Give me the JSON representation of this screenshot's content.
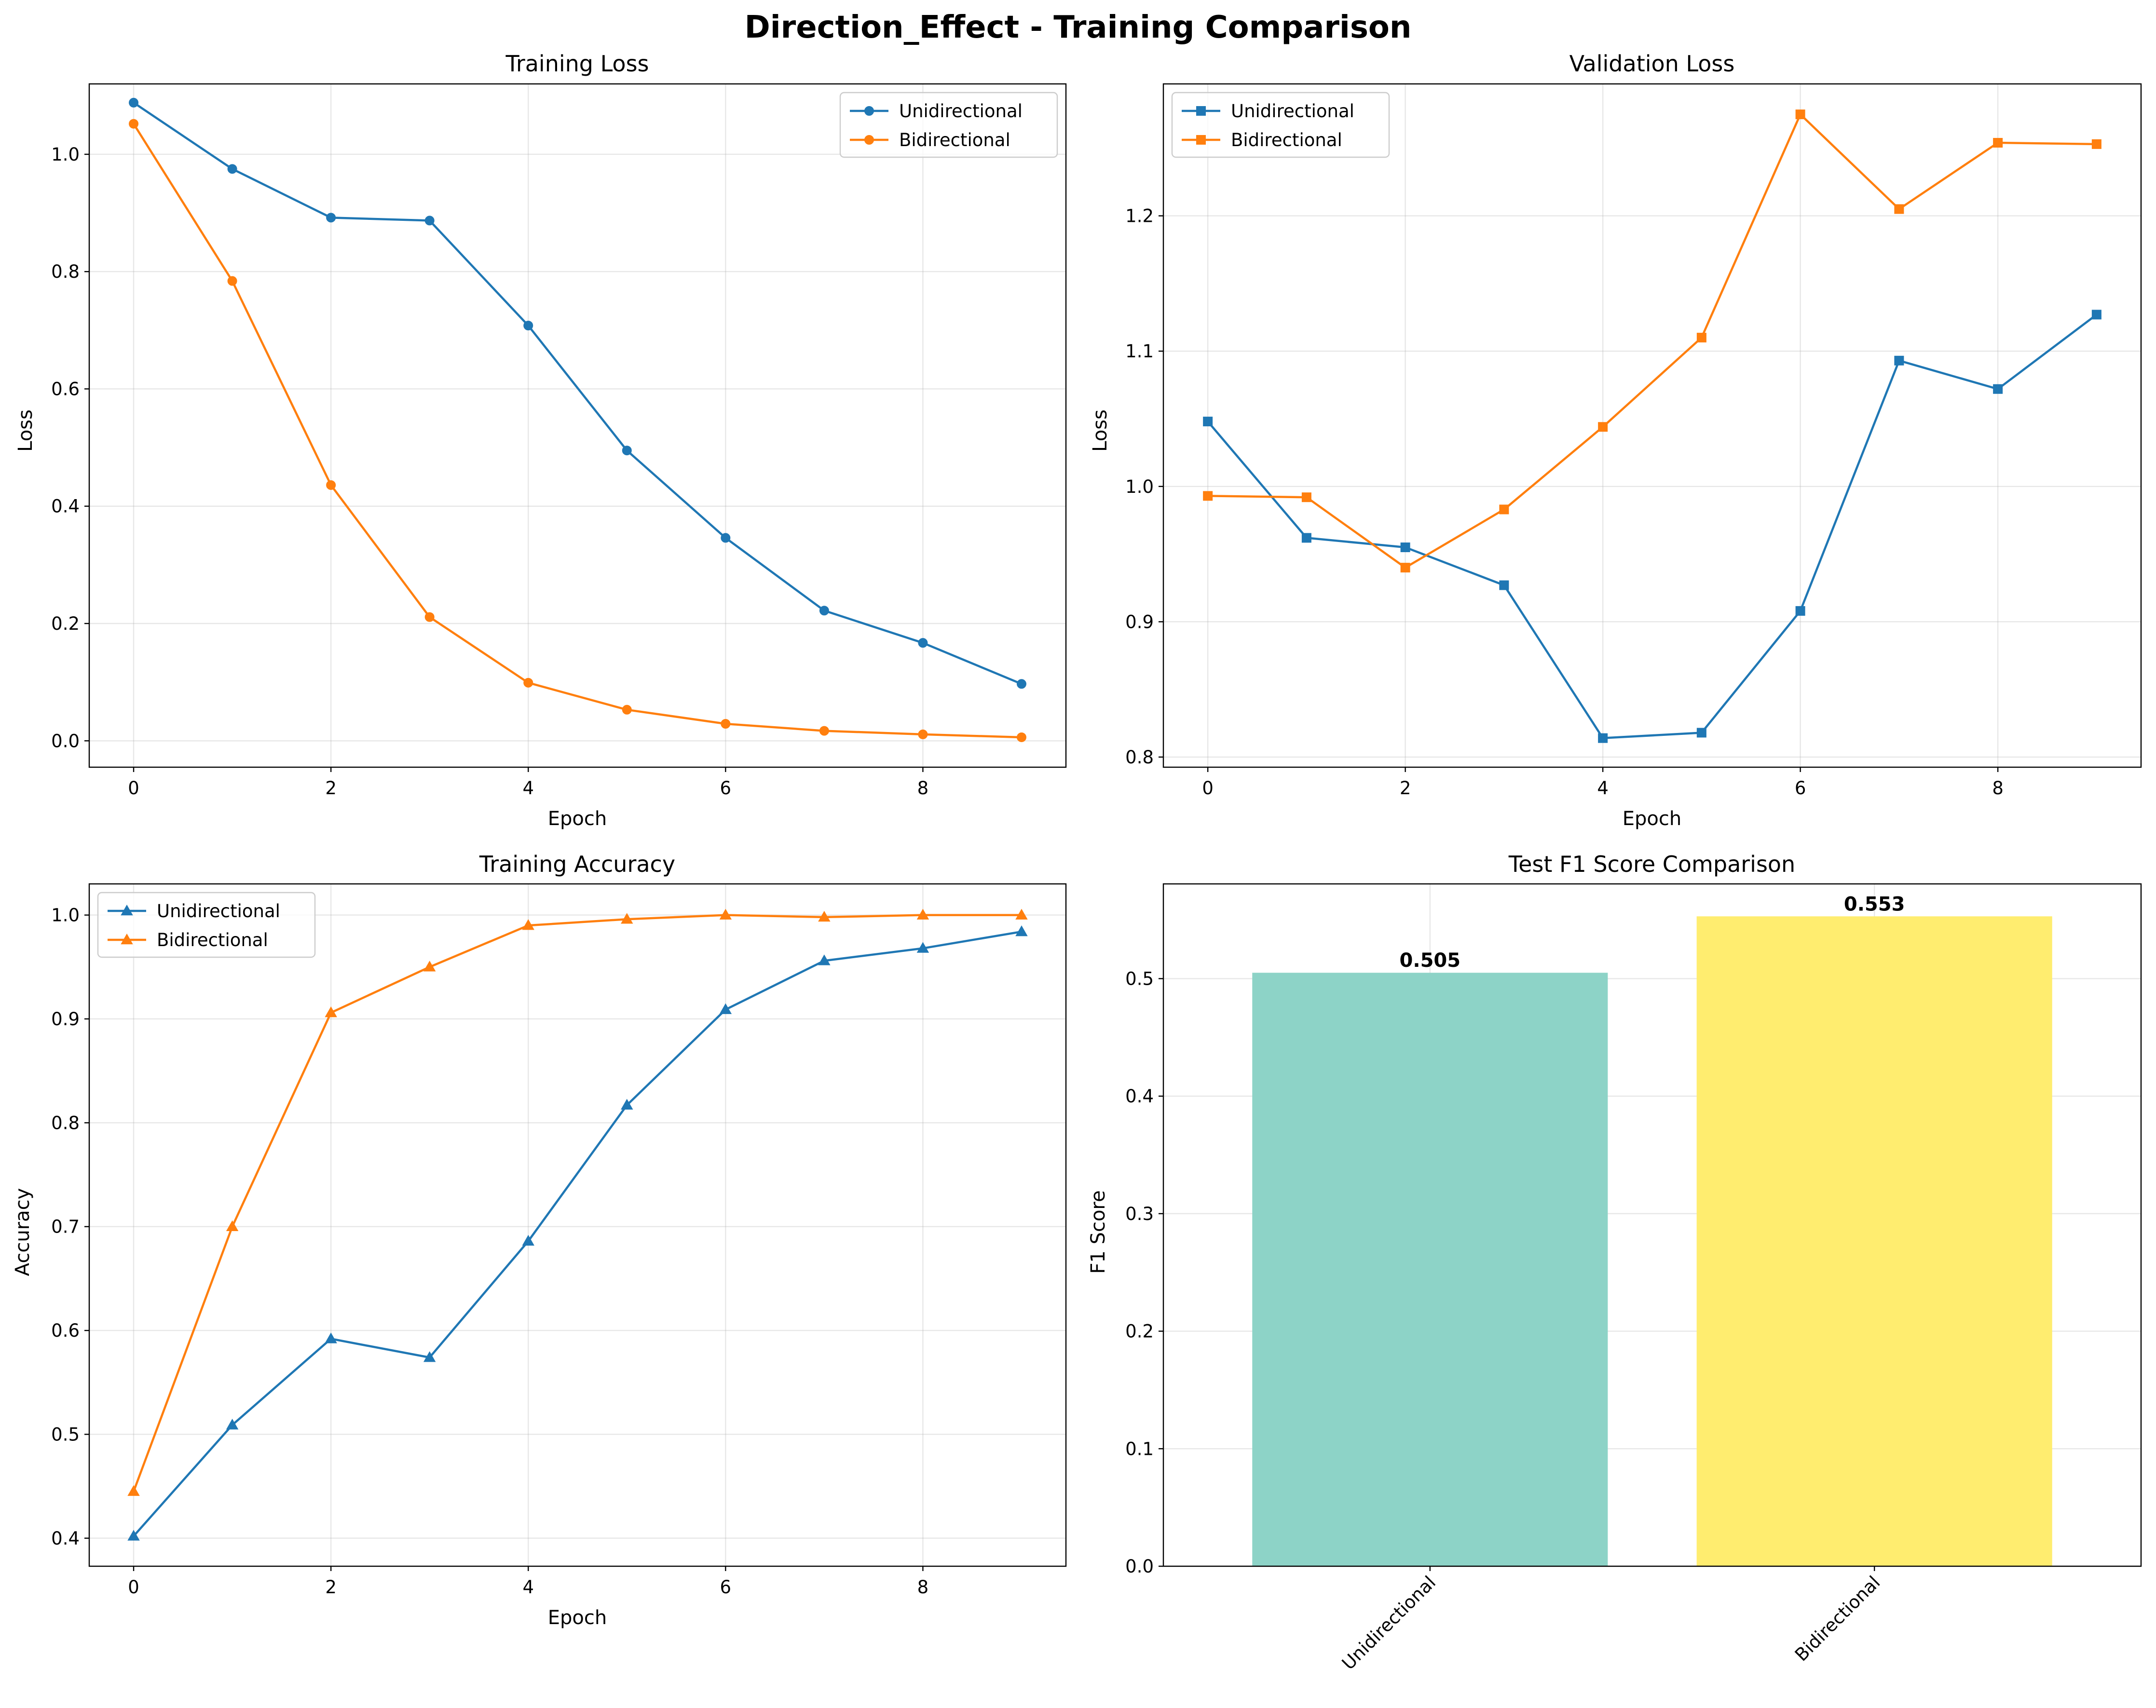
{
  "figure": {
    "title": "Direction_Effect - Training Comparison"
  },
  "colors": {
    "unidirectional": "#1f77b4",
    "bidirectional": "#ff7f0e",
    "bar_unidirectional": "#8dd3c7",
    "bar_bidirectional": "#ffed6f"
  },
  "chart_data": [
    {
      "type": "line",
      "title": "Training Loss",
      "xlabel": "Epoch",
      "ylabel": "Loss",
      "x": [
        0,
        1,
        2,
        3,
        4,
        5,
        6,
        7,
        8,
        9
      ],
      "xlim": [
        -0.45,
        9.45
      ],
      "ylim": [
        -0.045,
        1.12
      ],
      "xticks": [
        0,
        2,
        4,
        6,
        8
      ],
      "yticks": [
        0.0,
        0.2,
        0.4,
        0.6,
        0.8,
        1.0
      ],
      "ytick_labels": [
        "0.0",
        "0.2",
        "0.4",
        "0.6",
        "0.8",
        "1.0"
      ],
      "marker": "circle",
      "grid": true,
      "legend": "upper right",
      "series": [
        {
          "name": "Unidirectional",
          "color": "#1f77b4",
          "values": [
            1.088,
            0.975,
            0.892,
            0.887,
            0.708,
            0.495,
            0.346,
            0.222,
            0.167,
            0.097
          ]
        },
        {
          "name": "Bidirectional",
          "color": "#ff7f0e",
          "values": [
            1.052,
            0.784,
            0.436,
            0.211,
            0.099,
            0.053,
            0.029,
            0.017,
            0.011,
            0.006
          ]
        }
      ]
    },
    {
      "type": "line",
      "title": "Validation Loss",
      "xlabel": "Epoch",
      "ylabel": "Loss",
      "x": [
        0,
        1,
        2,
        3,
        4,
        5,
        6,
        7,
        8,
        9
      ],
      "xlim": [
        -0.45,
        9.45
      ],
      "ylim": [
        0.7925,
        1.2975
      ],
      "xticks": [
        0,
        2,
        4,
        6,
        8
      ],
      "yticks": [
        0.8,
        0.9,
        1.0,
        1.1,
        1.2
      ],
      "ytick_labels": [
        "0.8",
        "0.9",
        "1.0",
        "1.1",
        "1.2"
      ],
      "marker": "square",
      "grid": true,
      "legend": "upper left",
      "series": [
        {
          "name": "Unidirectional",
          "color": "#1f77b4",
          "values": [
            1.048,
            0.962,
            0.955,
            0.927,
            0.814,
            0.818,
            0.908,
            1.093,
            1.072,
            1.127
          ]
        },
        {
          "name": "Bidirectional",
          "color": "#ff7f0e",
          "values": [
            0.993,
            0.992,
            0.94,
            0.983,
            1.044,
            1.11,
            1.275,
            1.205,
            1.254,
            1.253
          ]
        }
      ]
    },
    {
      "type": "line",
      "title": "Training Accuracy",
      "xlabel": "Epoch",
      "ylabel": "Accuracy",
      "x": [
        0,
        1,
        2,
        3,
        4,
        5,
        6,
        7,
        8,
        9
      ],
      "xlim": [
        -0.45,
        9.45
      ],
      "ylim": [
        0.373,
        1.03
      ],
      "xticks": [
        0,
        2,
        4,
        6,
        8
      ],
      "yticks": [
        0.4,
        0.5,
        0.6,
        0.7,
        0.8,
        0.9,
        1.0
      ],
      "ytick_labels": [
        "0.4",
        "0.5",
        "0.6",
        "0.7",
        "0.8",
        "0.9",
        "1.0"
      ],
      "marker": "triangle",
      "grid": true,
      "legend": "upper left",
      "series": [
        {
          "name": "Unidirectional",
          "color": "#1f77b4",
          "values": [
            0.402,
            0.509,
            0.592,
            0.574,
            0.686,
            0.817,
            0.909,
            0.956,
            0.968,
            0.984
          ]
        },
        {
          "name": "Bidirectional",
          "color": "#ff7f0e",
          "values": [
            0.445,
            0.7,
            0.906,
            0.95,
            0.99,
            0.996,
            1.0,
            0.998,
            1.0,
            1.0
          ]
        }
      ]
    },
    {
      "type": "bar",
      "title": "Test F1 Score Comparison",
      "xlabel": "",
      "ylabel": "F1 Score",
      "categories": [
        "Unidirectional",
        "Bidirectional"
      ],
      "values": [
        0.505,
        0.553
      ],
      "value_labels": [
        "0.505",
        "0.553"
      ],
      "colors": [
        "#8dd3c7",
        "#ffed6f"
      ],
      "xlim": [
        -0.6,
        1.6
      ],
      "ylim": [
        0,
        0.5806
      ],
      "yticks": [
        0.0,
        0.1,
        0.2,
        0.3,
        0.4,
        0.5
      ],
      "ytick_labels": [
        "0.0",
        "0.1",
        "0.2",
        "0.3",
        "0.4",
        "0.5"
      ],
      "xtick_rotation": 45,
      "grid": true
    }
  ]
}
